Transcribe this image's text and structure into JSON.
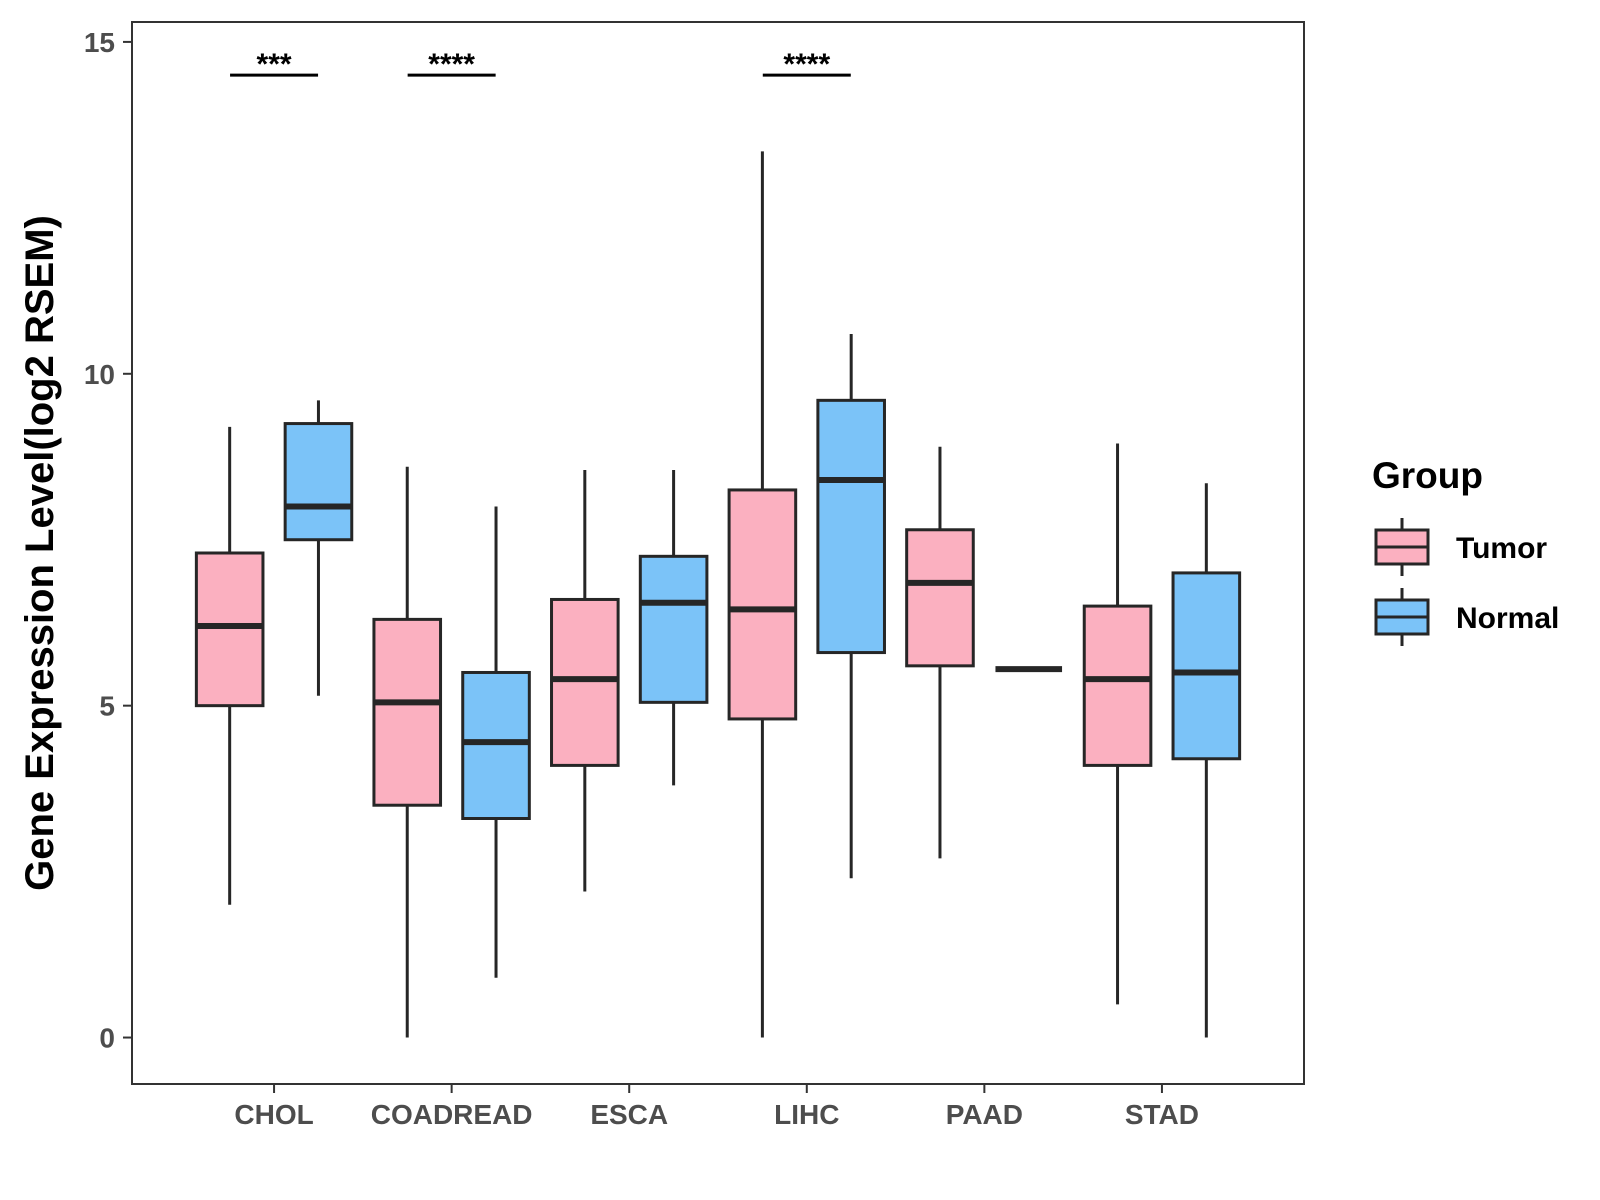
{
  "chart_data": {
    "type": "boxplot",
    "title": "",
    "xlabel": "",
    "ylabel": "Gene Expression Level(log2 RSEM)",
    "ylim": [
      -0.7,
      15.3
    ],
    "yticks": [
      0,
      5,
      10,
      15
    ],
    "ytick_labels": [
      "0",
      "5",
      "10",
      "15"
    ],
    "categories": [
      "CHOL",
      "COADREAD",
      "ESCA",
      "LIHC",
      "PAAD",
      "STAD"
    ],
    "series": [
      {
        "name": "Tumor",
        "color": "#FBB0C0",
        "boxes": [
          {
            "whislo": 2.0,
            "q1": 5.0,
            "med": 6.2,
            "q3": 7.3,
            "whishi": 9.2
          },
          {
            "whislo": 0.0,
            "q1": 3.5,
            "med": 5.05,
            "q3": 6.3,
            "whishi": 8.6
          },
          {
            "whislo": 2.2,
            "q1": 4.1,
            "med": 5.4,
            "q3": 6.6,
            "whishi": 8.55
          },
          {
            "whislo": 0.0,
            "q1": 4.8,
            "med": 6.45,
            "q3": 8.25,
            "whishi": 13.35
          },
          {
            "whislo": 2.7,
            "q1": 5.6,
            "med": 6.85,
            "q3": 7.65,
            "whishi": 8.9
          },
          {
            "whislo": 0.5,
            "q1": 4.1,
            "med": 5.4,
            "q3": 6.5,
            "whishi": 8.95
          }
        ]
      },
      {
        "name": "Normal",
        "color": "#7BC3F8",
        "boxes": [
          {
            "whislo": 5.15,
            "q1": 7.5,
            "med": 8.0,
            "q3": 9.25,
            "whishi": 9.6
          },
          {
            "whislo": 0.9,
            "q1": 3.3,
            "med": 4.45,
            "q3": 5.5,
            "whishi": 8.0
          },
          {
            "whislo": 3.8,
            "q1": 5.05,
            "med": 6.55,
            "q3": 7.25,
            "whishi": 8.55
          },
          {
            "whislo": 2.4,
            "q1": 5.8,
            "med": 8.4,
            "q3": 9.6,
            "whishi": 10.6
          },
          {
            "whislo": 5.55,
            "q1": 5.55,
            "med": 5.55,
            "q3": 5.55,
            "whishi": 5.55
          },
          {
            "whislo": 0.0,
            "q1": 4.2,
            "med": 5.5,
            "q3": 7.0,
            "whishi": 8.35
          }
        ]
      }
    ],
    "significance": [
      {
        "category": "CHOL",
        "label": "***",
        "y": 14.5
      },
      {
        "category": "COADREAD",
        "label": "****",
        "y": 14.5
      },
      {
        "category": "LIHC",
        "label": "****",
        "y": 14.5
      }
    ],
    "legend": {
      "title": "Group",
      "position": "right",
      "entries": [
        "Tumor",
        "Normal"
      ]
    },
    "grid": false
  }
}
